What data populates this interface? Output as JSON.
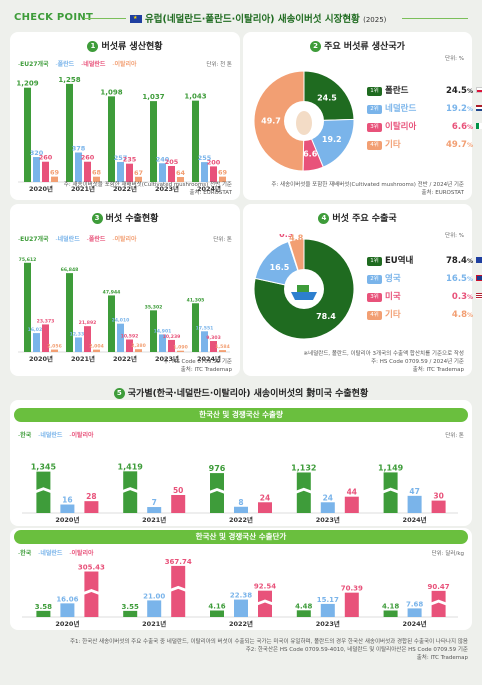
{
  "header": {
    "checkpoint": "CHECK POINT",
    "title": "유럽(네덜란드·폴란드·이탈리아) 새송이버섯 시장현황",
    "year": "(2025)"
  },
  "colors": {
    "eu": "#3e9c3a",
    "pl": "#7ab4ea",
    "nl": "#e8527a",
    "it": "#f29f73",
    "green": "#1f6b20"
  },
  "panel1": {
    "num": "1",
    "title": "버섯류 생산현황",
    "unit": "단위: 천 톤",
    "legend": [
      "EU27개국",
      "폴란드",
      "네덜란드",
      "이탈리아"
    ],
    "note1": "주: 새송이버섯을 포함한 재배버섯(Cultivated mushrooms) 전반 기준",
    "note2": "출처: EUROSTAT",
    "chart_data": {
      "type": "bar",
      "categories": [
        "2020년",
        "2021년",
        "2022년",
        "2023년",
        "2024년"
      ],
      "series": [
        {
          "name": "EU27개국",
          "values": [
            1209,
            1258,
            1098,
            1037,
            1043
          ]
        },
        {
          "name": "폴란드",
          "values": [
            320,
            378,
            257,
            240,
            255
          ]
        },
        {
          "name": "네덜란드",
          "values": [
            260,
            260,
            235,
            205,
            200
          ]
        },
        {
          "name": "이탈리아",
          "values": [
            69,
            68,
            67,
            64,
            69
          ]
        }
      ],
      "labels": [
        [
          "1,209",
          "320",
          "260",
          "69"
        ],
        [
          "1,258",
          "378",
          "260",
          "68"
        ],
        [
          "1,098",
          "257",
          "235",
          "67"
        ],
        [
          "1,037",
          "240",
          "205",
          "64"
        ],
        [
          "1,043",
          "255",
          "200",
          "69"
        ]
      ]
    }
  },
  "panel2": {
    "num": "2",
    "title": "주요 버섯류 생산국가",
    "unit": "단위: %",
    "note1": "주: 새송이버섯을 포함한 재배버섯(Cultivated mushrooms) 전반 / 2024년 기준",
    "note2": "출처: EUROSTAT",
    "chart_data": {
      "type": "pie",
      "slices": [
        {
          "name": "폴란드",
          "value": 24.5,
          "label": "24.5"
        },
        {
          "name": "네덜란드",
          "value": 19.2,
          "label": "19.2"
        },
        {
          "name": "이탈리아",
          "value": 6.6,
          "label": "6.6"
        },
        {
          "name": "기타",
          "value": 49.7,
          "label": "49.7"
        }
      ]
    },
    "ranks": [
      {
        "badge": "1위",
        "name": "폴란드",
        "value": "24.5",
        "pct": "%",
        "flag": "pl"
      },
      {
        "badge": "2위",
        "name": "네덜란드",
        "value": "19.2",
        "pct": "%",
        "flag": "nl"
      },
      {
        "badge": "3위",
        "name": "이탈리아",
        "value": "6.6",
        "pct": "%",
        "flag": "it"
      },
      {
        "badge": "4위",
        "name": "기타",
        "value": "49.7",
        "pct": "%",
        "flag": ""
      }
    ]
  },
  "panel3": {
    "num": "3",
    "title": "버섯 수출현황",
    "unit": "단위: 톤",
    "legend": [
      "EU27개국",
      "네덜란드",
      "폴란드",
      "이탈리아"
    ],
    "note1": "주: HS Code 0709.59 기준",
    "note2": "출처: ITC Trademap",
    "chart_data": {
      "type": "bar",
      "categories": [
        "2020년",
        "2021년",
        "2022년",
        "2023년",
        "2024년"
      ],
      "series": [
        {
          "name": "EU27개국",
          "values": [
            75612,
            66848,
            47944,
            35302,
            41305
          ]
        },
        {
          "name": "네덜란드",
          "values": [
            16023,
            12330,
            24010,
            14901,
            17551
          ]
        },
        {
          "name": "폴란드",
          "values": [
            23373,
            21892,
            10592,
            10239,
            9303
          ]
        },
        {
          "name": "이탈리아",
          "values": [
            2056,
            2004,
            2380,
            1090,
            1584
          ]
        }
      ],
      "labels": [
        [
          "75,612",
          "16,023",
          "23,373",
          "2,056"
        ],
        [
          "66,848",
          "12,330",
          "21,892",
          "2,004"
        ],
        [
          "47,944",
          "24,010",
          "10,592",
          "2,380"
        ],
        [
          "35,302",
          "14,901",
          "10,239",
          "1,090"
        ],
        [
          "41,305",
          "17,551",
          "9,303",
          "1,584"
        ]
      ]
    }
  },
  "panel4": {
    "num": "4",
    "title": "버섯 주요 수출국",
    "unit": "단위: %",
    "note1": "※네덜란드, 폴란드, 이탈리아 3개국의 수출액 합산치를 기준으로 작성",
    "note2": "주: HS Code 0709.59  / 2024년 기준",
    "note3": "출처: ITC Trademap",
    "chart_data": {
      "type": "pie",
      "slices": [
        {
          "name": "EU역내",
          "value": 78.4,
          "label": "78.4"
        },
        {
          "name": "영국",
          "value": 16.5,
          "label": "16.5"
        },
        {
          "name": "미국",
          "value": 0.3,
          "label": "0.3"
        },
        {
          "name": "기타",
          "value": 4.8,
          "label": "4.8"
        }
      ]
    },
    "ranks": [
      {
        "badge": "1위",
        "name": "EU역내",
        "value": "78.4",
        "pct": "%",
        "flag": "eu"
      },
      {
        "badge": "2위",
        "name": "영국",
        "value": "16.5",
        "pct": "%",
        "flag": "uk"
      },
      {
        "badge": "3위",
        "name": "미국",
        "value": "0.3",
        "pct": "%",
        "flag": "us"
      },
      {
        "badge": "4위",
        "name": "기타",
        "value": "4.8",
        "pct": "%",
        "flag": ""
      }
    ]
  },
  "section5": {
    "num": "5",
    "title": "국가별(한국·네덜란드·이탈리아) 새송이버섯의 對미국 수출현황",
    "vol": {
      "bar_title": "한국산 및 경쟁국산 수출량",
      "legend": [
        "한국",
        "네덜란드",
        "이탈리아"
      ],
      "unit": "단위: 톤",
      "chart_data": {
        "type": "bar",
        "categories": [
          "2020년",
          "2021년",
          "2022년",
          "2023년",
          "2024년"
        ],
        "series": [
          {
            "name": "한국",
            "values": [
              1345,
              1419,
              976,
              1132,
              1149
            ]
          },
          {
            "name": "네덜란드",
            "values": [
              16,
              7,
              8,
              24,
              47
            ]
          },
          {
            "name": "이탈리아",
            "values": [
              28,
              50,
              24,
              44,
              30
            ]
          }
        ],
        "labels": [
          [
            "1,345",
            "16",
            "28"
          ],
          [
            "1,419",
            "7",
            "50"
          ],
          [
            "976",
            "8",
            "24"
          ],
          [
            "1,132",
            "24",
            "44"
          ],
          [
            "1,149",
            "47",
            "30"
          ]
        ]
      }
    },
    "price": {
      "bar_title": "한국산 및 경쟁국산 수출단가",
      "legend": [
        "한국",
        "네덜란드",
        "이탈리아"
      ],
      "unit": "단위: 달러/kg",
      "chart_data": {
        "type": "bar",
        "categories": [
          "2020년",
          "2021년",
          "2022년",
          "2023년",
          "2024년"
        ],
        "series": [
          {
            "name": "한국",
            "values": [
              3.58,
              3.55,
              4.16,
              4.48,
              4.18
            ]
          },
          {
            "name": "네덜란드",
            "values": [
              16.06,
              21.0,
              22.38,
              15.17,
              7.68
            ]
          },
          {
            "name": "이탈리아",
            "values": [
              305.43,
              367.74,
              92.54,
              70.39,
              90.47
            ]
          }
        ],
        "labels": [
          [
            "3.58",
            "16.06",
            "305.43"
          ],
          [
            "3.55",
            "21.00",
            "367.74"
          ],
          [
            "4.16",
            "22.38",
            "92.54"
          ],
          [
            "4.48",
            "15.17",
            "70.39"
          ],
          [
            "4.18",
            "7.68",
            "90.47"
          ]
        ]
      }
    },
    "foot1": "주1: 한국산 새송이버섯의 주요 수출국 중 네덜란드, 이탈리아의 버섯이 수출되는 국가는 미국이 유일하며, 폴란드의 경우 한국산 새송이버섯과 경합된 수출국이 나타나지 않음",
    "foot2": "주2: 한국산은 HS Code 0709.59-4010,  네덜란드 및 이탈리아산은 HS Code 0709.59 기준",
    "foot3": "출처: ITC Trademap"
  }
}
